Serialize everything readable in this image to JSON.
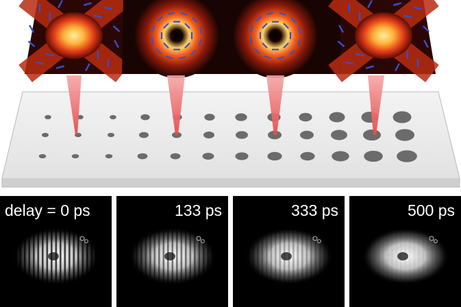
{
  "panels": [
    {
      "label": "delay = 0 ps",
      "fringe_visibility": 0.9
    },
    {
      "label": "133 ps",
      "fringe_visibility": 0.6
    },
    {
      "label": "333 ps",
      "fringe_visibility": 0.3
    },
    {
      "label": "500 ps",
      "fringe_visibility": 0.05
    }
  ],
  "colors": {
    "slab": "#e7e7e7",
    "slab_edge": "#b9b9b9",
    "pillar": "#6b6b6b",
    "beam": "#f07a7a",
    "vector_arrows": "#3b4fc4",
    "heat_core": "#ffe27a",
    "heat_mid": "#e8361a",
    "heat_outer": "#5a0c06"
  },
  "mode_maps": [
    "x-shaped lobes",
    "dark-core ring",
    "dark-core ring",
    "x-shaped lobes"
  ]
}
